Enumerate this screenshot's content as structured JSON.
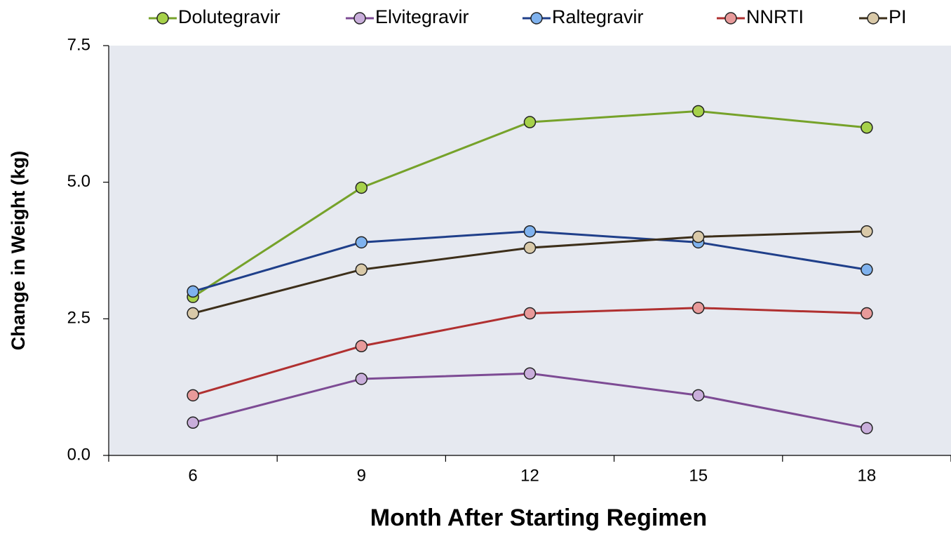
{
  "chart_data": {
    "type": "line",
    "x_label": "Month After Starting Regimen",
    "y_label": "Change in Weight (kg)",
    "categories": [
      "6",
      "9",
      "12",
      "15",
      "18"
    ],
    "series": [
      {
        "name": "Dolutegravir",
        "color": "#76a22a",
        "marker_color": "#a6d14a",
        "values": [
          2.9,
          4.9,
          6.1,
          6.3,
          6.0
        ]
      },
      {
        "name": "Elvitegravir",
        "color": "#7d4b94",
        "marker_color": "#c9aedb",
        "values": [
          0.6,
          1.4,
          1.5,
          1.1,
          0.5
        ]
      },
      {
        "name": "Raltegravir",
        "color": "#1f3f8a",
        "marker_color": "#7fb2ee",
        "values": [
          3.0,
          3.9,
          4.1,
          3.9,
          3.4
        ]
      },
      {
        "name": "NNRTI",
        "color": "#b03030",
        "marker_color": "#e89a9a",
        "values": [
          1.1,
          2.0,
          2.6,
          2.7,
          2.6
        ]
      },
      {
        "name": "PI",
        "color": "#3d2f1a",
        "marker_color": "#d9c9a8",
        "values": [
          2.6,
          3.4,
          3.8,
          4.0,
          4.1
        ]
      }
    ],
    "ylim": [
      0,
      7.5
    ],
    "yticks": [
      {
        "value": 0,
        "label": "0.0"
      },
      {
        "value": 2.5,
        "label": "2.5"
      },
      {
        "value": 5,
        "label": "5.0"
      },
      {
        "value": 7.5,
        "label": "7.5"
      }
    ],
    "legend": "top",
    "plot_background": "#e6e9f0"
  }
}
